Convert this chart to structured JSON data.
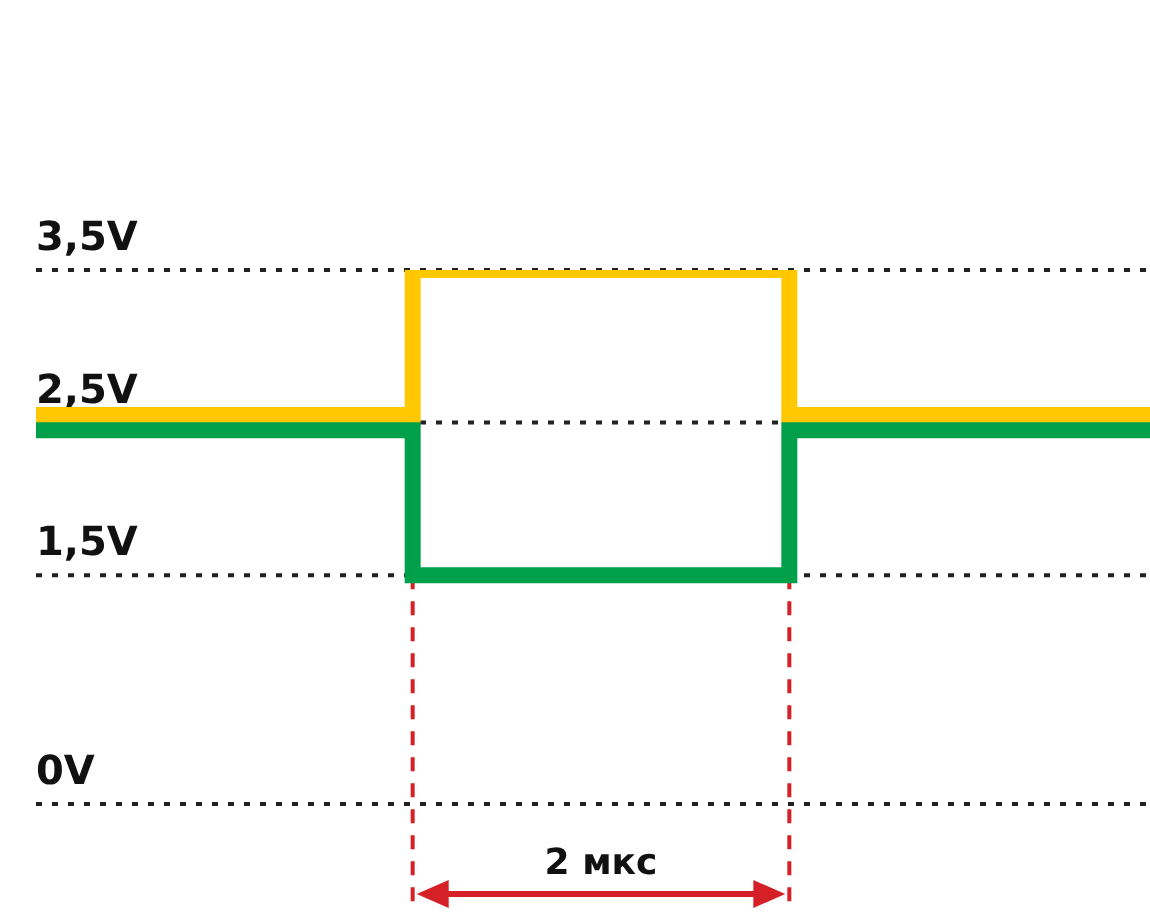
{
  "chart_data": {
    "type": "step",
    "categories": [
      null,
      null,
      null,
      null,
      null,
      null,
      null,
      null,
      null,
      null
    ],
    "series": [
      {
        "color": "#ffc800",
        "values": [
          2.55,
          2.55,
          2.55,
          3.5,
          3.5,
          3.5,
          2.55,
          2.55,
          2.55,
          2.55
        ]
      },
      {
        "color": "#00a04a",
        "values": [
          2.45,
          2.45,
          2.45,
          1.5,
          1.5,
          1.5,
          2.45,
          2.45,
          2.45,
          2.45
        ]
      }
    ],
    "ylim": [
      0,
      3.5
    ],
    "yticks": [
      {
        "value": 0,
        "label": "0V"
      },
      {
        "value": 1.5,
        "label": "1,5V"
      },
      {
        "value": 2.5,
        "label": "2,5V"
      },
      {
        "value": 3.5,
        "label": "3,5V"
      }
    ],
    "tick_labels": "y",
    "grid": "y",
    "marker": "none",
    "line_style": "solid",
    "annotations": [
      "2 мкс"
    ]
  }
}
